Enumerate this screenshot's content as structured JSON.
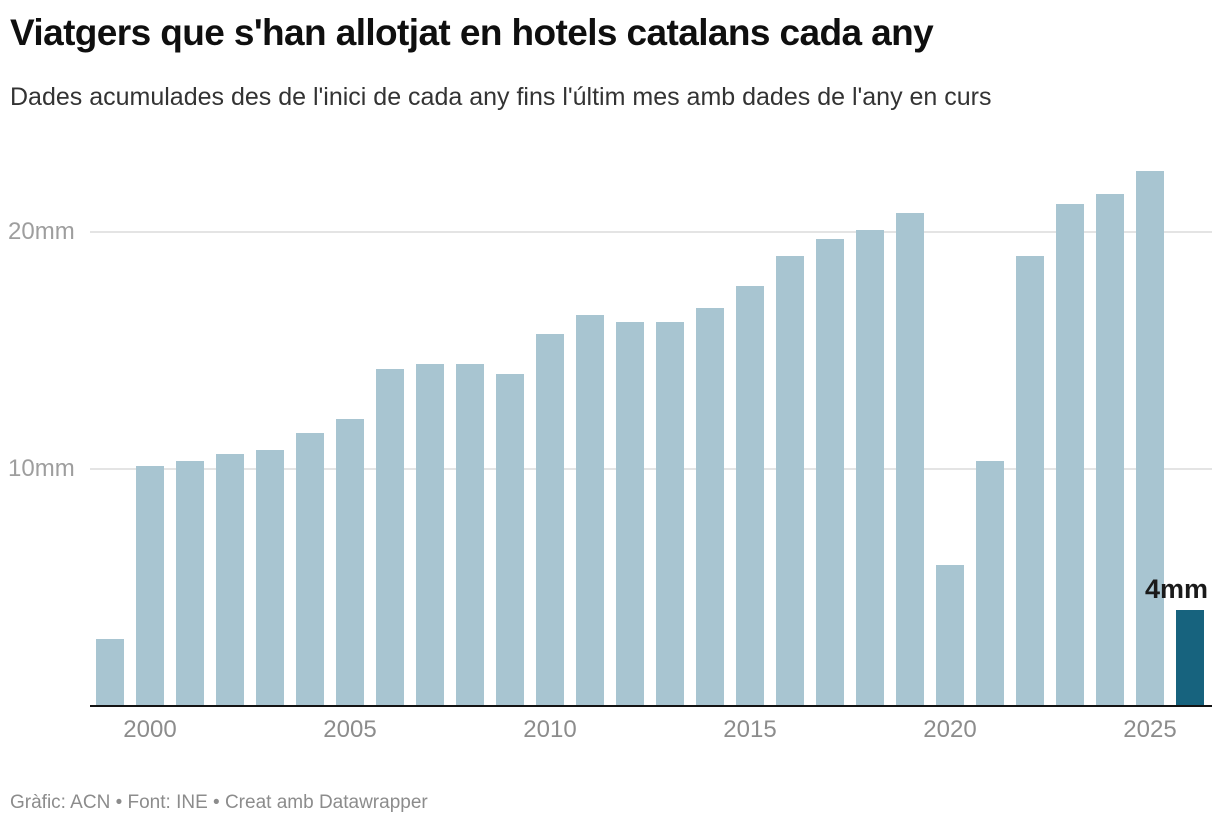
{
  "header": {
    "title": "Viatgers que s'han allotjat en hotels catalans cada any",
    "subtitle": "Dades acumulades des de l'inici de cada any fins l'últim mes amb dades de l'any en curs"
  },
  "footer": {
    "credit": "Gràfic: ACN • Font: INE • Creat amb Datawrapper"
  },
  "chart_data": {
    "type": "bar",
    "title": "Viatgers que s'han allotjat en hotels catalans cada any",
    "subtitle": "Dades acumulades des de l'inici de cada any fins l'últim mes amb dades de l'any en curs",
    "unit": "mm (milions)",
    "categories": [
      1999,
      2000,
      2001,
      2002,
      2003,
      2004,
      2005,
      2006,
      2007,
      2008,
      2009,
      2010,
      2011,
      2012,
      2013,
      2014,
      2015,
      2016,
      2017,
      2018,
      2019,
      2020,
      2021,
      2022,
      2023,
      2024,
      2025,
      2026
    ],
    "values": [
      2.8,
      10.1,
      10.3,
      10.6,
      10.8,
      11.5,
      12.1,
      14.2,
      14.4,
      14.4,
      14.0,
      15.7,
      16.5,
      16.2,
      16.2,
      16.8,
      17.7,
      19.0,
      19.7,
      20.1,
      20.8,
      5.9,
      10.3,
      19.0,
      21.2,
      21.6,
      22.6,
      4.0
    ],
    "highlight_category": 2026,
    "bar_label": {
      "category": 2026,
      "text": "4mm"
    },
    "x_ticks": [
      2000,
      2005,
      2010,
      2015,
      2020,
      2025
    ],
    "y_ticks": [
      {
        "value": 10,
        "label": "10mm"
      },
      {
        "value": 20,
        "label": "20mm"
      }
    ],
    "ylim": [
      0,
      23.5
    ],
    "grid": "horizontal",
    "legend": "none",
    "colors": {
      "bar": "#a8c5d1",
      "highlight": "#17637e"
    }
  }
}
